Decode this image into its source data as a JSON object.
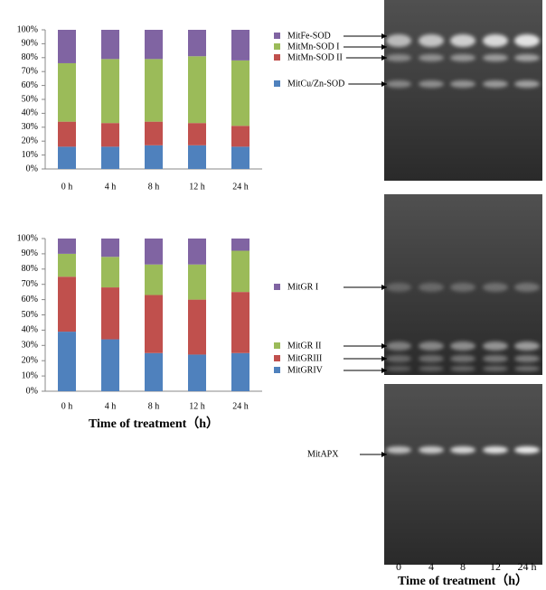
{
  "chart_data": [
    {
      "type": "stacked_bar",
      "categories": [
        "0 h",
        "4 h",
        "8 h",
        "12 h",
        "24 h"
      ],
      "ylim": [
        0,
        100
      ],
      "yticks": [
        {
          "value": 0,
          "label": "0%"
        },
        {
          "value": 10,
          "label": "10%"
        },
        {
          "value": 20,
          "label": "20%"
        },
        {
          "value": 30,
          "label": "30%"
        },
        {
          "value": 40,
          "label": "40%"
        },
        {
          "value": 50,
          "label": "50%"
        },
        {
          "value": 60,
          "label": "60%"
        },
        {
          "value": 70,
          "label": "70%"
        },
        {
          "value": 80,
          "label": "80%"
        },
        {
          "value": 90,
          "label": "90%"
        },
        {
          "value": 100,
          "label": "100%"
        }
      ],
      "series": [
        {
          "name": "MitCu/Zn-SOD",
          "color": "#4f81bd",
          "values": [
            16,
            16,
            17,
            17,
            16
          ]
        },
        {
          "name": "MitMn-SOD II",
          "color": "#c0504d",
          "values": [
            18,
            17,
            17,
            16,
            15
          ]
        },
        {
          "name": "MitMn-SOD I",
          "color": "#9bbb59",
          "values": [
            42,
            46,
            45,
            48,
            47
          ]
        },
        {
          "name": "MitFe-SOD",
          "color": "#8064a2",
          "values": [
            24,
            21,
            21,
            19,
            22
          ]
        }
      ]
    },
    {
      "type": "stacked_bar",
      "categories": [
        "0 h",
        "4 h",
        "8 h",
        "12 h",
        "24 h"
      ],
      "x_label": "Time of treatment（h）",
      "ylim": [
        0,
        100
      ],
      "yticks": [
        {
          "value": 0,
          "label": "0%"
        },
        {
          "value": 10,
          "label": "10%"
        },
        {
          "value": 20,
          "label": "20%"
        },
        {
          "value": 30,
          "label": "30%"
        },
        {
          "value": 40,
          "label": "40%"
        },
        {
          "value": 50,
          "label": "50%"
        },
        {
          "value": 60,
          "label": "60%"
        },
        {
          "value": 70,
          "label": "70%"
        },
        {
          "value": 80,
          "label": "80%"
        },
        {
          "value": 90,
          "label": "90%"
        },
        {
          "value": 100,
          "label": "100%"
        }
      ],
      "series": [
        {
          "name": "MitGRIV",
          "color": "#4f81bd",
          "values": [
            39,
            34,
            25,
            24,
            25
          ]
        },
        {
          "name": "MitGRIII",
          "color": "#c0504d",
          "values": [
            36,
            34,
            38,
            36,
            40
          ]
        },
        {
          "name": "MitGR II",
          "color": "#9bbb59",
          "values": [
            15,
            20,
            20,
            23,
            27
          ]
        },
        {
          "name": "MitGR I",
          "color": "#8064a2",
          "values": [
            10,
            12,
            17,
            17,
            8
          ]
        }
      ]
    }
  ],
  "gel": {
    "band_label": "MitAPX",
    "lanes": [
      "0",
      "4",
      "8",
      "12",
      "24 h"
    ],
    "x_label": "Time of treatment（h）"
  }
}
